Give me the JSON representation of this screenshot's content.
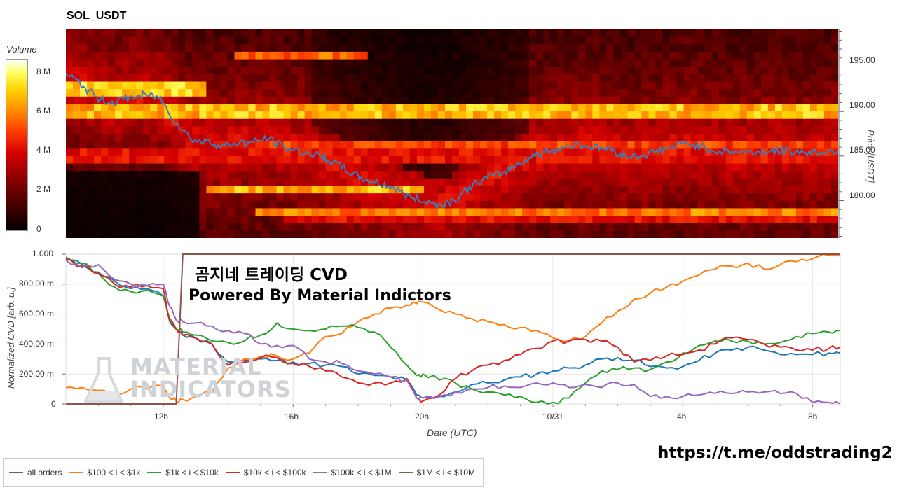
{
  "title": "SOL_USDT",
  "heatmap": {
    "colorbar_title": "Volume",
    "colorbar_ticks": [
      "8 M",
      "6 M",
      "4 M",
      "2 M",
      "0"
    ],
    "price_axis_label": "Price [USDT]",
    "price_ticks": [
      "195.00",
      "190.00",
      "185.00",
      "180.00"
    ],
    "price_range": [
      175.8,
      199.2
    ]
  },
  "chart_data": [
    {
      "type": "heatmap",
      "title": "SOL_USDT",
      "xlabel": "",
      "ylabel": "Price [USDT]",
      "colorbar_label": "Volume",
      "ylim": [
        175.8,
        199.2
      ],
      "zlim": [
        0,
        9000000
      ],
      "price_series": {
        "name": "price",
        "x_hours": [
          8.0,
          8.5,
          9.0,
          9.5,
          10.0,
          10.5,
          11.0,
          11.5,
          12.0,
          12.4,
          12.6,
          13.0,
          13.5,
          14.0,
          14.5,
          15.0,
          15.5,
          16.0,
          16.5,
          17.0,
          17.5,
          18.0,
          18.5,
          19.0,
          19.5,
          20.0,
          20.5,
          21.0,
          21.5,
          22.0,
          22.5,
          23.0,
          23.5,
          24.0,
          24.5,
          25.0,
          25.5,
          26.0,
          26.5,
          27.0,
          27.5,
          28.0,
          28.5,
          29.0,
          29.5,
          30.0,
          30.5,
          31.0,
          31.5,
          32.0,
          32.5,
          32.8
        ],
        "values": [
          194.3,
          193.0,
          191.5,
          191.0,
          191.5,
          191.8,
          191.6,
          189.0,
          187.0,
          186.5,
          186.8,
          186.0,
          186.5,
          186.5,
          187.0,
          186.0,
          185.5,
          185.2,
          184.5,
          183.5,
          182.5,
          182.0,
          181.5,
          180.5,
          180.0,
          179.5,
          180.0,
          181.5,
          182.5,
          183.0,
          184.0,
          185.0,
          185.5,
          186.0,
          186.3,
          186.0,
          185.8,
          185.0,
          185.0,
          185.5,
          186.0,
          186.5,
          186.0,
          185.5,
          185.5,
          185.4,
          185.5,
          185.6,
          185.5,
          185.4,
          185.5,
          185.6
        ]
      },
      "volume_levels": [
        {
          "price": 192.5,
          "peak_volume": 8500000,
          "from_hour": 8.0,
          "to_hour": 12.5
        },
        {
          "price": 190.0,
          "peak_volume": 8000000,
          "from_hour": 8.0,
          "to_hour": 32.8
        },
        {
          "price": 196.0,
          "peak_volume": 6500000,
          "from_hour": 13.5,
          "to_hour": 17.8
        },
        {
          "price": 185.0,
          "peak_volume": 5000000,
          "from_hour": 8.0,
          "to_hour": 32.8
        },
        {
          "price": 186.0,
          "peak_volume": 6000000,
          "from_hour": 14.0,
          "to_hour": 32.8
        },
        {
          "price": 181.0,
          "peak_volume": 8000000,
          "from_hour": 12.5,
          "to_hour": 19.5
        },
        {
          "price": 179.0,
          "peak_volume": 7000000,
          "from_hour": 14.0,
          "to_hour": 32.8
        },
        {
          "price": 178.0,
          "peak_volume": 5000000,
          "from_hour": 15.0,
          "to_hour": 32.8
        }
      ]
    },
    {
      "type": "line",
      "title": "",
      "xlabel": "Date (UTC)",
      "ylabel": "Normalized CVD [arb. u.]",
      "x_tick_labels": [
        "12h",
        "16h",
        "20h",
        "10/31",
        "4h",
        "8h"
      ],
      "x_tick_hours": [
        12,
        16,
        20,
        24,
        28,
        32
      ],
      "xlim": [
        9.0,
        32.85
      ],
      "y_tick_labels": [
        "1.000",
        "800.00 m",
        "600.00 m",
        "400.00 m",
        "200.00 m",
        "0"
      ],
      "y_tick_values": [
        1.0,
        0.8,
        0.6,
        0.4,
        0.2,
        0
      ],
      "ylim": [
        0,
        1.0
      ],
      "x": [
        9.0,
        9.5,
        10.0,
        10.5,
        11.0,
        11.5,
        12.0,
        12.2,
        12.4,
        12.6,
        13.0,
        13.5,
        14.0,
        14.5,
        15.0,
        15.5,
        16.0,
        16.5,
        17.0,
        17.5,
        18.0,
        18.5,
        19.0,
        19.5,
        19.8,
        20.0,
        20.5,
        21.0,
        21.5,
        22.0,
        22.5,
        23.0,
        23.5,
        24.0,
        24.5,
        25.0,
        25.5,
        26.0,
        26.5,
        27.0,
        27.5,
        28.0,
        28.5,
        29.0,
        29.5,
        30.0,
        30.5,
        31.0,
        31.5,
        32.0,
        32.5,
        32.85
      ],
      "series": [
        {
          "name": "all orders",
          "color": "#1f77b4",
          "values": [
            0.97,
            0.93,
            0.88,
            0.82,
            0.77,
            0.77,
            0.72,
            0.55,
            0.5,
            0.46,
            0.44,
            0.4,
            0.28,
            0.29,
            0.3,
            0.29,
            0.28,
            0.27,
            0.26,
            0.25,
            0.2,
            0.19,
            0.18,
            0.16,
            0.06,
            0.04,
            0.05,
            0.08,
            0.13,
            0.14,
            0.16,
            0.18,
            0.2,
            0.22,
            0.24,
            0.26,
            0.3,
            0.31,
            0.29,
            0.25,
            0.24,
            0.25,
            0.29,
            0.34,
            0.36,
            0.38,
            0.36,
            0.33,
            0.33,
            0.33,
            0.34,
            0.34
          ]
        },
        {
          "name": "$100 < i < $1k",
          "color": "#ff7f0e",
          "values": [
            0.11,
            0.11,
            0.09,
            0.07,
            0.1,
            0.1,
            0.12,
            0.04,
            0.02,
            0.03,
            0.05,
            0.08,
            0.24,
            0.3,
            0.32,
            0.32,
            0.3,
            0.34,
            0.45,
            0.47,
            0.55,
            0.6,
            0.64,
            0.66,
            0.67,
            0.68,
            0.63,
            0.6,
            0.57,
            0.55,
            0.53,
            0.51,
            0.49,
            0.44,
            0.42,
            0.45,
            0.54,
            0.62,
            0.7,
            0.74,
            0.78,
            0.82,
            0.86,
            0.9,
            0.92,
            0.94,
            0.9,
            0.93,
            0.95,
            0.97,
            0.99,
            1.0
          ]
        },
        {
          "name": "$1k < i < $10k",
          "color": "#2ca02c",
          "values": [
            0.98,
            0.94,
            0.87,
            0.78,
            0.75,
            0.76,
            0.72,
            0.57,
            0.5,
            0.48,
            0.46,
            0.42,
            0.41,
            0.42,
            0.46,
            0.54,
            0.5,
            0.49,
            0.5,
            0.52,
            0.51,
            0.48,
            0.38,
            0.26,
            0.19,
            0.2,
            0.16,
            0.14,
            0.1,
            0.08,
            0.06,
            0.05,
            0.01,
            0.01,
            0.04,
            0.14,
            0.22,
            0.23,
            0.24,
            0.23,
            0.28,
            0.34,
            0.39,
            0.42,
            0.42,
            0.42,
            0.4,
            0.41,
            0.45,
            0.47,
            0.48,
            0.49
          ]
        },
        {
          "name": "$10k < i < $100k",
          "color": "#d62728",
          "values": [
            0.97,
            0.92,
            0.87,
            0.8,
            0.78,
            0.79,
            0.77,
            0.55,
            0.5,
            0.46,
            0.44,
            0.4,
            0.26,
            0.28,
            0.31,
            0.31,
            0.27,
            0.25,
            0.22,
            0.18,
            0.14,
            0.14,
            0.14,
            0.17,
            0.04,
            0.02,
            0.06,
            0.17,
            0.22,
            0.26,
            0.29,
            0.33,
            0.37,
            0.42,
            0.42,
            0.43,
            0.42,
            0.38,
            0.28,
            0.29,
            0.32,
            0.33,
            0.36,
            0.4,
            0.44,
            0.43,
            0.4,
            0.38,
            0.36,
            0.36,
            0.37,
            0.38
          ]
        },
        {
          "name": "$100k < i < $1M",
          "color": "#9467bd",
          "values": [
            0.96,
            0.91,
            0.93,
            0.83,
            0.8,
            0.79,
            0.8,
            0.65,
            0.56,
            0.55,
            0.54,
            0.52,
            0.49,
            0.47,
            0.4,
            0.39,
            0.39,
            0.3,
            0.28,
            0.27,
            0.22,
            0.2,
            0.18,
            0.16,
            0.04,
            0.04,
            0.05,
            0.08,
            0.1,
            0.11,
            0.12,
            0.11,
            0.14,
            0.14,
            0.11,
            0.13,
            0.11,
            0.14,
            0.13,
            0.05,
            0.05,
            0.05,
            0.06,
            0.07,
            0.07,
            0.08,
            0.08,
            0.07,
            0.07,
            0.01,
            0.01,
            0.0
          ]
        },
        {
          "name": "$1M < i < $10M",
          "color": "#8c564b",
          "values": [
            0.0,
            0.0,
            0.0,
            0.0,
            0.0,
            0.0,
            0.0,
            0.0,
            0.0,
            1.0,
            1.0,
            1.0,
            1.0,
            1.0,
            1.0,
            1.0,
            1.0,
            1.0,
            1.0,
            1.0,
            1.0,
            1.0,
            1.0,
            1.0,
            1.0,
            1.0,
            1.0,
            1.0,
            1.0,
            1.0,
            1.0,
            1.0,
            1.0,
            1.0,
            1.0,
            1.0,
            1.0,
            1.0,
            1.0,
            1.0,
            1.0,
            1.0,
            1.0,
            1.0,
            1.0,
            1.0,
            1.0,
            1.0,
            1.0,
            1.0,
            1.0,
            1.0
          ]
        }
      ]
    }
  ],
  "overlay": {
    "line1": "곰지네 트레이딩 CVD",
    "line2": "Powered By Material Indictors"
  },
  "watermark": {
    "line1": "MATERIAL",
    "line2": "INDICATORS"
  },
  "telegram_link": "https://t.me/oddstrading2",
  "legend": [
    {
      "label": "all orders",
      "color": "#1f77b4"
    },
    {
      "label": "$100 < i < $1k",
      "color": "#ff7f0e"
    },
    {
      "label": "$1k < i < $10k",
      "color": "#2ca02c"
    },
    {
      "label": "$10k < i < $100k",
      "color": "#d62728"
    },
    {
      "label": "$100k < i < $1M",
      "color": "#9467bd"
    },
    {
      "label": "$1M < i < $10M",
      "color": "#8c564b"
    }
  ],
  "axis_labels": {
    "x": "Date (UTC)",
    "y": "Normalized CVD [arb. u.]"
  }
}
